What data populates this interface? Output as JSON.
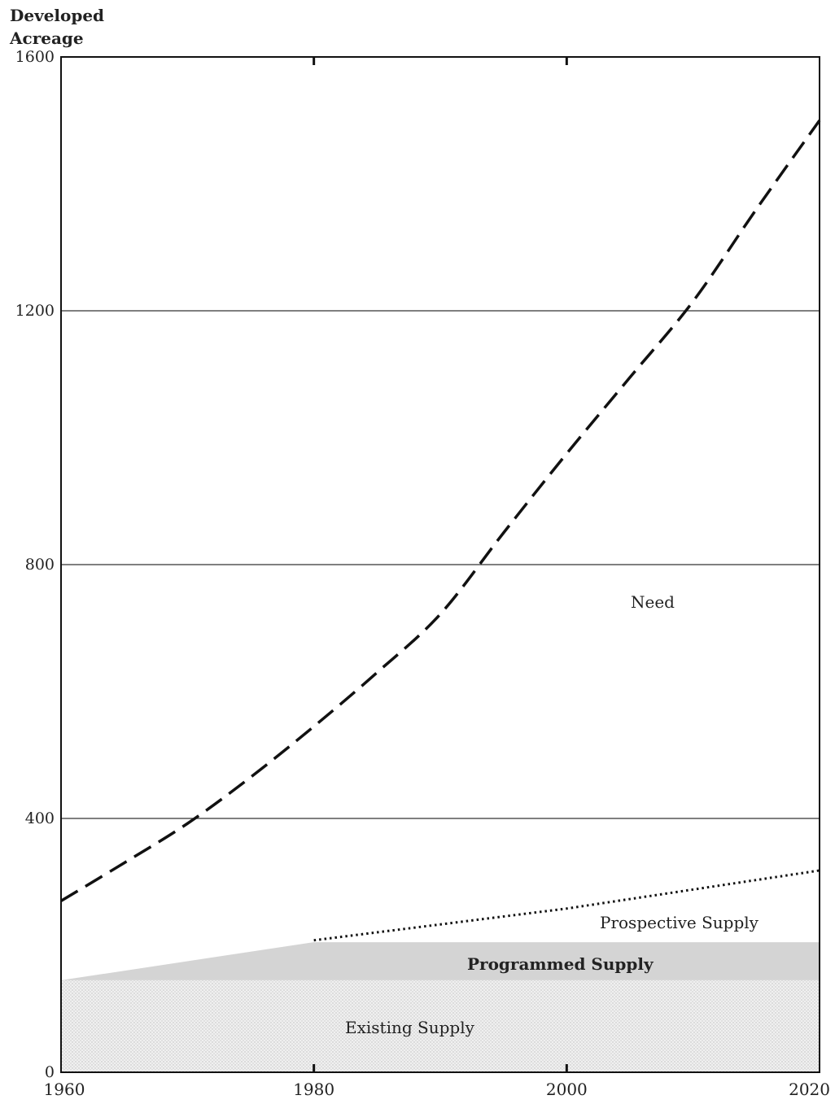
{
  "chart_data": {
    "type": "area",
    "title": "",
    "ylabel_lines": [
      "Developed",
      "Acreage"
    ],
    "xlabel": "",
    "xlim": [
      1960,
      2020
    ],
    "ylim": [
      0,
      1600
    ],
    "x_ticks": [
      1960,
      1980,
      2000,
      2020
    ],
    "y_ticks": [
      0,
      400,
      800,
      1200,
      1600
    ],
    "grid_y": true,
    "series": [
      {
        "name": "Existing Supply",
        "style": "stippled-area",
        "x": [
          1960,
          2020
        ],
        "y": [
          145,
          145
        ]
      },
      {
        "name": "Programmed Supply",
        "style": "shaded-area",
        "x": [
          1960,
          1980,
          2020
        ],
        "y": [
          145,
          205,
          205
        ]
      },
      {
        "name": "Prospective Supply",
        "style": "dotted-line",
        "x": [
          1980,
          2000,
          2020
        ],
        "y": [
          208,
          258,
          318
        ]
      },
      {
        "name": "Need",
        "style": "dashed-line",
        "x": [
          1960,
          1965,
          1970,
          1975,
          1980,
          1985,
          1990,
          1995,
          2000,
          2005,
          2010,
          2015,
          2020
        ],
        "y": [
          270,
          330,
          392,
          465,
          545,
          630,
          722,
          850,
          975,
          1095,
          1215,
          1360,
          1500
        ]
      }
    ],
    "colors": {
      "existing_fill": "#ececec",
      "programmed_fill": "#d4d4d4",
      "line": "#111111",
      "grid": "#333333"
    }
  }
}
